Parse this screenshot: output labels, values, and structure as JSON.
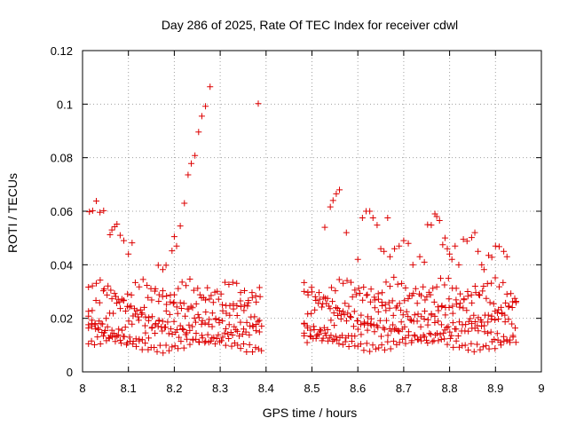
{
  "chart_data": {
    "type": "scatter",
    "title": "Day 286 of 2025, Rate Of TEC Index for receiver cdwl",
    "xlabel": "GPS time / hours",
    "ylabel": "ROTI / TECUs",
    "xlim": [
      8,
      9
    ],
    "ylim": [
      0,
      0.12
    ],
    "xticks": [
      8,
      8.1,
      8.2,
      8.3,
      8.4,
      8.5,
      8.6,
      8.7,
      8.8,
      8.9,
      9
    ],
    "xtick_labels": [
      "8",
      "8.1",
      "8.2",
      "8.3",
      "8.4",
      "8.5",
      "8.6",
      "8.7",
      "8.8",
      "8.9",
      "9"
    ],
    "yticks": [
      0,
      0.02,
      0.04,
      0.06,
      0.08,
      0.1,
      0.12
    ],
    "ytick_labels": [
      "0",
      "0.02",
      "0.04",
      "0.06",
      "0.08",
      "0.1",
      "0.12"
    ],
    "grid": true,
    "marker": "+",
    "color": "#dd0000",
    "series": [
      {
        "name": "ROTI",
        "points": [
          [
            8.015,
            0.0598
          ],
          [
            8.022,
            0.0602
          ],
          [
            8.03,
            0.0638
          ],
          [
            8.038,
            0.0596
          ],
          [
            8.046,
            0.0602
          ],
          [
            8.06,
            0.0512
          ],
          [
            8.064,
            0.053
          ],
          [
            8.07,
            0.0542
          ],
          [
            8.075,
            0.0552
          ],
          [
            8.082,
            0.051
          ],
          [
            8.09,
            0.049
          ],
          [
            8.1,
            0.044
          ],
          [
            8.108,
            0.0482
          ],
          [
            8.165,
            0.0398
          ],
          [
            8.175,
            0.0382
          ],
          [
            8.182,
            0.0398
          ],
          [
            8.195,
            0.0452
          ],
          [
            8.2,
            0.0505
          ],
          [
            8.205,
            0.047
          ],
          [
            8.213,
            0.0545
          ],
          [
            8.222,
            0.063
          ],
          [
            8.23,
            0.0736
          ],
          [
            8.237,
            0.0778
          ],
          [
            8.245,
            0.0808
          ],
          [
            8.253,
            0.0896
          ],
          [
            8.26,
            0.0955
          ],
          [
            8.268,
            0.0992
          ],
          [
            8.278,
            0.1065
          ],
          [
            8.383,
            0.1002
          ],
          [
            8.528,
            0.054
          ],
          [
            8.54,
            0.0616
          ],
          [
            8.546,
            0.064
          ],
          [
            8.553,
            0.0665
          ],
          [
            8.56,
            0.068
          ],
          [
            8.575,
            0.052
          ],
          [
            8.6,
            0.042
          ],
          [
            8.61,
            0.0575
          ],
          [
            8.618,
            0.06
          ],
          [
            8.626,
            0.06
          ],
          [
            8.633,
            0.0575
          ],
          [
            8.642,
            0.0548
          ],
          [
            8.65,
            0.046
          ],
          [
            8.657,
            0.045
          ],
          [
            8.665,
            0.0575
          ],
          [
            8.67,
            0.043
          ],
          [
            8.68,
            0.046
          ],
          [
            8.69,
            0.047
          ],
          [
            8.7,
            0.049
          ],
          [
            8.71,
            0.048
          ],
          [
            8.72,
            0.04
          ],
          [
            8.735,
            0.043
          ],
          [
            8.745,
            0.041
          ],
          [
            8.752,
            0.055
          ],
          [
            8.76,
            0.0548
          ],
          [
            8.768,
            0.059
          ],
          [
            8.772,
            0.058
          ],
          [
            8.778,
            0.0565
          ],
          [
            8.785,
            0.0475
          ],
          [
            8.79,
            0.05
          ],
          [
            8.795,
            0.046
          ],
          [
            8.8,
            0.044
          ],
          [
            8.805,
            0.042
          ],
          [
            8.812,
            0.047
          ],
          [
            8.82,
            0.04
          ],
          [
            8.83,
            0.0495
          ],
          [
            8.838,
            0.0488
          ],
          [
            8.848,
            0.0502
          ],
          [
            8.855,
            0.052
          ],
          [
            8.862,
            0.045
          ],
          [
            8.87,
            0.04
          ],
          [
            8.875,
            0.0382
          ],
          [
            8.885,
            0.0435
          ],
          [
            8.892,
            0.0428
          ],
          [
            8.9,
            0.047
          ],
          [
            8.908,
            0.0468
          ],
          [
            8.918,
            0.045
          ],
          [
            8.925,
            0.043
          ]
        ]
      }
    ]
  }
}
